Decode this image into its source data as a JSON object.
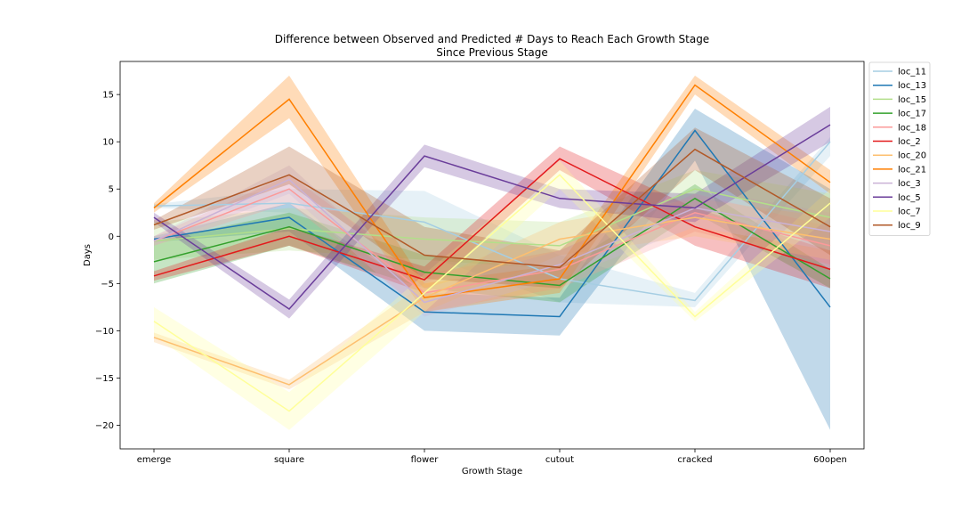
{
  "chart_data": {
    "type": "line",
    "title": "Difference between Observed and Predicted # Days to Reach Each Growth Stage",
    "subtitle": "Since Previous Stage",
    "xlabel": "Growth Stage",
    "ylabel": "Days",
    "categories": [
      "emerge",
      "square",
      "flower",
      "cutout",
      "cracked",
      "60open"
    ],
    "ylim": [
      -22.5,
      18.5
    ],
    "yticks": [
      -20,
      -15,
      -10,
      -5,
      0,
      5,
      10,
      15
    ],
    "grid": false,
    "legend_position": "outside-top-right",
    "series": [
      {
        "name": "loc_11",
        "color": "#a6cee3",
        "values": [
          3.2,
          3.5,
          1.5,
          -4.5,
          -6.8,
          10.0
        ],
        "lower": [
          3.0,
          2.5,
          -2.0,
          -7.0,
          -7.5,
          8.5
        ],
        "upper": [
          3.4,
          5.0,
          4.8,
          -2.0,
          -6.0,
          10.5
        ]
      },
      {
        "name": "loc_13",
        "color": "#1f78b4",
        "values": [
          -0.3,
          2.0,
          -8.0,
          -8.5,
          11.2,
          -7.5
        ],
        "lower": [
          -0.6,
          0.5,
          -10.0,
          -10.5,
          8.0,
          -20.5
        ],
        "upper": [
          0.0,
          3.5,
          -6.0,
          -6.5,
          13.5,
          5.0
        ]
      },
      {
        "name": "loc_15",
        "color": "#b2df8a",
        "values": [
          -0.5,
          0.8,
          -0.3,
          -1.0,
          5.0,
          2.0
        ],
        "lower": [
          -2.5,
          -1.5,
          -2.5,
          -3.5,
          3.0,
          -0.5
        ],
        "upper": [
          1.5,
          3.0,
          2.0,
          1.5,
          7.0,
          4.5
        ]
      },
      {
        "name": "loc_17",
        "color": "#33a02c",
        "values": [
          -2.7,
          1.0,
          -3.8,
          -5.2,
          4.0,
          -4.5
        ],
        "lower": [
          -5.0,
          -1.0,
          -5.5,
          -7.0,
          2.5,
          -5.5
        ],
        "upper": [
          -0.5,
          2.5,
          -2.0,
          -3.5,
          5.5,
          -3.5
        ]
      },
      {
        "name": "loc_18",
        "color": "#fb9a99",
        "values": [
          -0.5,
          5.0,
          -6.0,
          -3.5,
          2.5,
          -1.0
        ],
        "lower": [
          -1.0,
          3.5,
          -8.0,
          -5.5,
          0.5,
          -3.0
        ],
        "upper": [
          0.0,
          6.5,
          -4.0,
          -1.5,
          4.5,
          1.0
        ]
      },
      {
        "name": "loc_2",
        "color": "#e31a1c",
        "values": [
          -4.2,
          0.0,
          -4.6,
          8.2,
          1.0,
          -3.5
        ],
        "lower": [
          -4.7,
          -1.0,
          -6.0,
          7.0,
          -1.0,
          -5.5
        ],
        "upper": [
          -3.7,
          1.0,
          -3.2,
          9.5,
          3.0,
          -1.5
        ]
      },
      {
        "name": "loc_20",
        "color": "#fdbf6f",
        "values": [
          -10.7,
          -15.7,
          -6.5,
          -0.3,
          2.0,
          -0.3
        ],
        "lower": [
          -11.2,
          -16.2,
          -8.0,
          -2.0,
          0.0,
          -2.5
        ],
        "upper": [
          -10.2,
          -15.2,
          -5.0,
          1.5,
          4.0,
          2.0
        ]
      },
      {
        "name": "loc_21",
        "color": "#ff7f00",
        "values": [
          3.0,
          14.5,
          -6.5,
          -4.5,
          16.0,
          5.7
        ],
        "lower": [
          2.5,
          12.5,
          -8.0,
          -6.0,
          15.0,
          4.5
        ],
        "upper": [
          3.5,
          17.0,
          -5.0,
          -3.0,
          17.0,
          7.0
        ]
      },
      {
        "name": "loc_3",
        "color": "#cab2d6",
        "values": [
          -0.5,
          6.0,
          -7.0,
          -3.0,
          3.0,
          0.5
        ],
        "lower": [
          -1.0,
          4.5,
          -8.5,
          -4.5,
          1.0,
          -1.5
        ],
        "upper": [
          0.0,
          7.5,
          -5.5,
          -1.5,
          5.0,
          2.5
        ]
      },
      {
        "name": "loc_5",
        "color": "#6a3d9a",
        "values": [
          2.0,
          -7.7,
          8.5,
          4.0,
          3.0,
          11.8
        ],
        "lower": [
          1.5,
          -8.7,
          7.3,
          3.0,
          1.5,
          10.0
        ],
        "upper": [
          2.5,
          -6.7,
          9.7,
          5.0,
          4.5,
          13.7
        ]
      },
      {
        "name": "loc_7",
        "color": "#ffff99",
        "values": [
          -9.0,
          -18.5,
          -6.0,
          6.5,
          -8.5,
          3.5
        ],
        "lower": [
          -10.5,
          -20.5,
          -8.0,
          5.0,
          -9.0,
          2.0
        ],
        "upper": [
          -7.5,
          -16.5,
          -4.0,
          8.0,
          -8.0,
          5.0
        ]
      },
      {
        "name": "loc_9",
        "color": "#b15928",
        "values": [
          1.2,
          6.5,
          -2.0,
          -3.3,
          9.2,
          1.0
        ],
        "lower": [
          0.7,
          5.5,
          -4.5,
          -5.5,
          7.0,
          -2.0
        ],
        "upper": [
          1.7,
          9.5,
          1.0,
          -1.5,
          11.5,
          4.0
        ]
      }
    ]
  }
}
